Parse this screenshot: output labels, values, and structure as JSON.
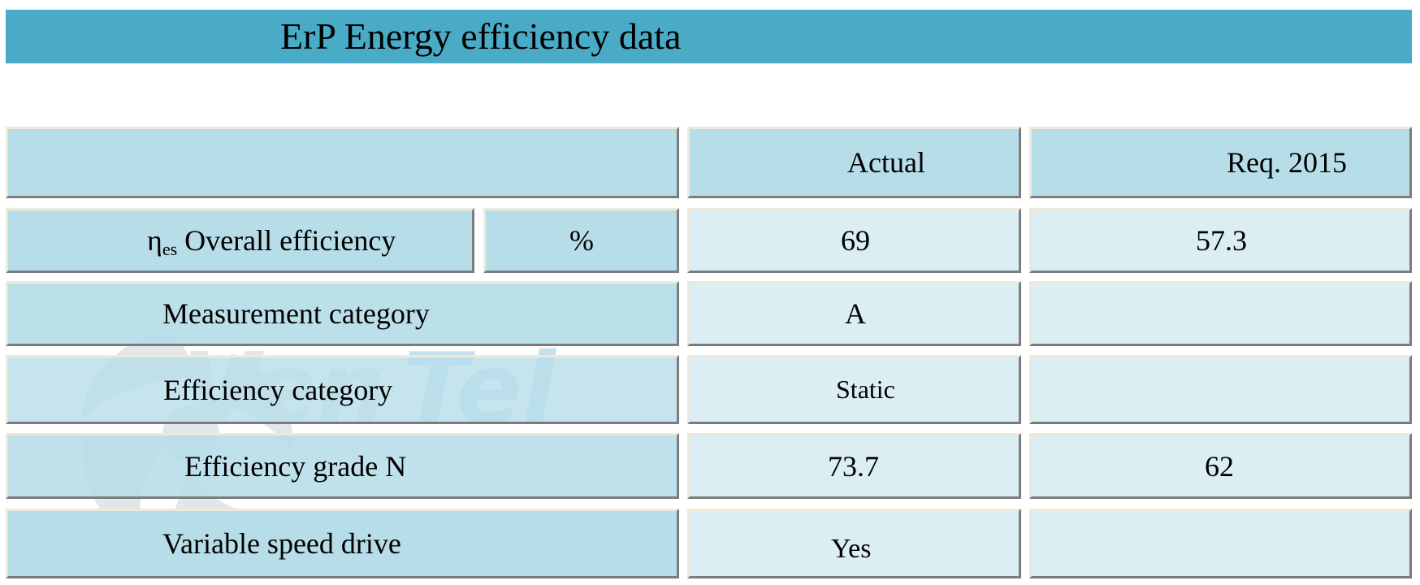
{
  "title": "ErP Energy efficiency data",
  "header": {
    "actual_label": "Actual",
    "req_label": "Req. 2015"
  },
  "rows": {
    "overall_efficiency": {
      "symbol": "η",
      "symbol_sub": "es",
      "label": "Overall efficiency",
      "unit": "%",
      "actual": "69",
      "req": "57.3"
    },
    "measurement_category": {
      "label": "Measurement category",
      "actual": "A",
      "req": ""
    },
    "efficiency_category": {
      "label": "Efficiency category",
      "actual": "Static",
      "req": ""
    },
    "efficiency_grade": {
      "label": "Efficiency grade N",
      "actual": "73.7",
      "req": "62"
    },
    "variable_speed_drive": {
      "label": "Variable speed drive",
      "actual": "Yes",
      "req": ""
    }
  },
  "watermark": {
    "text": "VenTel",
    "icon": "fan-icon"
  },
  "colors": {
    "title_bar": "#4aabc6",
    "cell_dark": "#b6dde8",
    "cell_light": "#daeef3"
  }
}
